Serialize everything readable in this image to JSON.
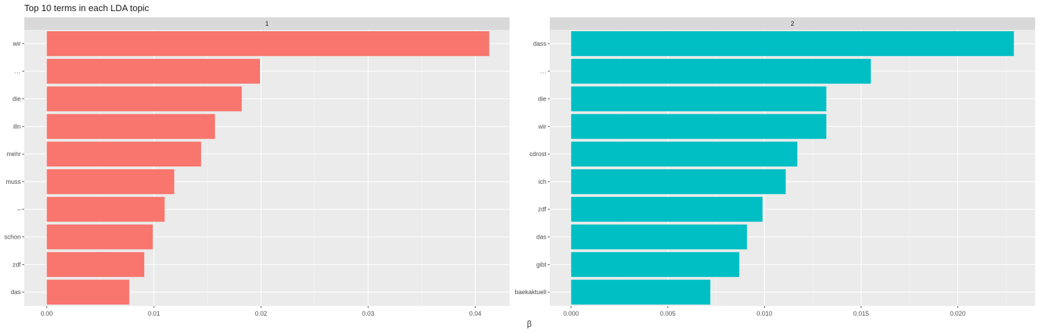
{
  "title": "Top 10 terms in each LDA topic",
  "x_label": "β",
  "colors": {
    "panel_bg": "#EBEBEB",
    "strip_bg": "#D9D9D9",
    "grid_major": "#FFFFFF",
    "grid_minor": "#F5F5F5",
    "topic1": "#F8766D",
    "topic2": "#00BFC4"
  },
  "chart_data": [
    {
      "type": "bar",
      "orientation": "horizontal",
      "facet": "1",
      "categories": [
        "wir",
        "…",
        "die",
        "illn",
        "mehr",
        "muss",
        "–",
        "schon",
        "zdf",
        "das"
      ],
      "values": [
        0.0413,
        0.0199,
        0.0182,
        0.0157,
        0.0144,
        0.0119,
        0.011,
        0.0099,
        0.0091,
        0.0077
      ],
      "xlim": [
        -0.0021,
        0.0432
      ],
      "xticks": [
        0.0,
        0.01,
        0.02,
        0.03,
        0.04
      ],
      "xtick_labels": [
        "0.00",
        "0.01",
        "0.02",
        "0.03",
        "0.04"
      ],
      "xlabel": "β",
      "ylabel": "",
      "grid": true,
      "color": "#F8766D"
    },
    {
      "type": "bar",
      "orientation": "horizontal",
      "facet": "2",
      "categories": [
        "dass",
        "…",
        "die",
        "wir",
        "cdrost",
        "ich",
        "zdf",
        "das",
        "gibt",
        "baekaktuell"
      ],
      "values": [
        0.0229,
        0.0155,
        0.0132,
        0.0132,
        0.0117,
        0.0111,
        0.0099,
        0.0091,
        0.0087,
        0.0072
      ],
      "xlim": [
        -0.0011,
        0.024
      ],
      "xticks": [
        0.0,
        0.005,
        0.01,
        0.015,
        0.02
      ],
      "xtick_labels": [
        "0.000",
        "0.005",
        "0.010",
        "0.015",
        "0.020"
      ],
      "xlabel": "β",
      "ylabel": "",
      "grid": true,
      "color": "#00BFC4"
    }
  ]
}
